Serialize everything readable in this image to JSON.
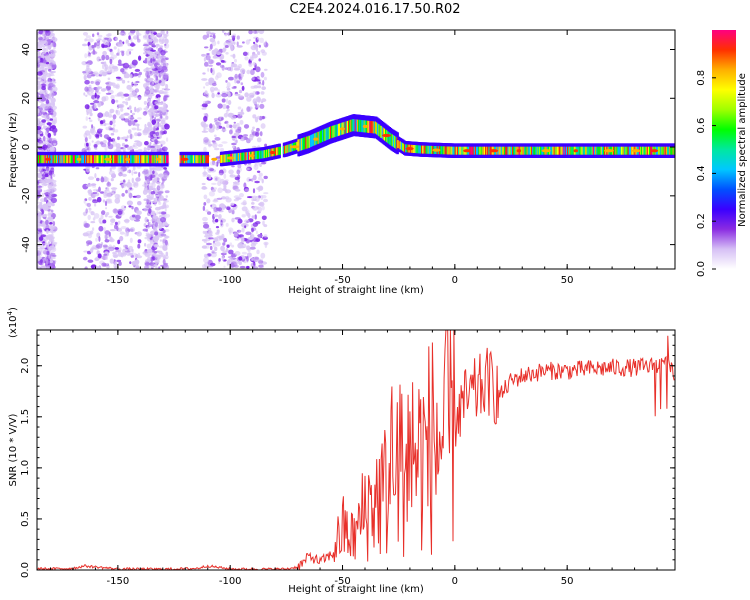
{
  "title": "C2E4.2024.016.17.50.R02",
  "chart_data": [
    {
      "type": "heatmap",
      "title": "C2E4.2024.016.17.50.R02",
      "xlabel": "Height of straight line (km)",
      "ylabel": "Frequency (Hz)",
      "xlim": [
        -186,
        98
      ],
      "ylim": [
        -50,
        48
      ],
      "xticks": [
        -150,
        -100,
        -50,
        0,
        50
      ],
      "yticks": [
        -40,
        -20,
        0,
        20,
        40
      ],
      "colorbar": {
        "label": "Normalized spectral amplitude",
        "range": [
          0,
          1
        ],
        "ticks": [
          "0.0",
          "0.2",
          "0.4",
          "0.6",
          "0.8"
        ],
        "colors": [
          "#ffffff",
          "#d6c0f5",
          "#8a2be2",
          "#3a00ff",
          "#0050ff",
          "#00c8ff",
          "#00e8a0",
          "#00ff00",
          "#a0ff00",
          "#ffff00",
          "#ffb000",
          "#ff3000",
          "#ff0080"
        ]
      },
      "ridge": {
        "x": [
          -183,
          -160,
          -140,
          -120,
          -105,
          -85,
          -75,
          -65,
          -55,
          -45,
          -35,
          -28,
          -22,
          -15,
          0,
          20,
          50,
          80,
          97
        ],
        "y": [
          -5,
          -5,
          -5,
          -5,
          -5,
          -3,
          -1,
          2,
          6,
          9,
          8,
          3,
          -0.5,
          -1,
          -1.5,
          -1.5,
          -1.5,
          -1.5,
          -1.5
        ]
      }
    },
    {
      "type": "line",
      "xlabel": "Height of straight line (km)",
      "ylabel": "SNR (10 * V/V)",
      "yexponent": "(x10",
      "yexponent_power": "4",
      "yexponent_close": ")",
      "xlim": [
        -186,
        98
      ],
      "ylim": [
        0,
        23500
      ],
      "xticks": [
        -150,
        -100,
        -50,
        0,
        50
      ],
      "yticks": [
        "0.0",
        "0.5",
        "1.0",
        "1.5",
        "2.0"
      ],
      "series": [
        {
          "color": "#e8302a",
          "x": [
            -186,
            -170,
            -165,
            -150,
            -130,
            -115,
            -110,
            -100,
            -85,
            -75,
            -70,
            -67,
            -65,
            -60,
            -55,
            -50,
            -45,
            -40,
            -35,
            -30,
            -25,
            -20,
            -15,
            -10,
            -5,
            0,
            5,
            10,
            15,
            20,
            25,
            30,
            40,
            50,
            60,
            70,
            80,
            90,
            95,
            98
          ],
          "y": [
            100,
            150,
            400,
            100,
            80,
            150,
            400,
            100,
            80,
            100,
            300,
            800,
            1400,
            800,
            1500,
            4000,
            3000,
            6000,
            7000,
            8000,
            10000,
            12000,
            11000,
            12500,
            13000,
            15000,
            16500,
            17500,
            18500,
            17000,
            18500,
            19000,
            19500,
            19500,
            19700,
            19800,
            19800,
            20000,
            20500,
            18500
          ]
        }
      ]
    }
  ]
}
